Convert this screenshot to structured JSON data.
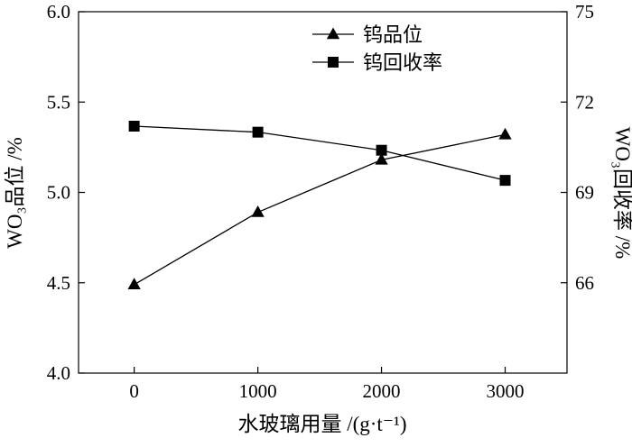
{
  "chart_data": {
    "type": "line",
    "title": "",
    "xlabel": "水玻璃用量 /(g·t⁻¹)",
    "ylabel_left": "WO₃品位 /%",
    "ylabel_right": "WO₃回收率 /%",
    "x": [
      0,
      1000,
      2000,
      3000
    ],
    "xlim": [
      -450,
      3500
    ],
    "xticks": [
      0,
      1000,
      2000,
      3000
    ],
    "ylim_left": [
      4.0,
      6.0
    ],
    "yticks_left": [
      4.0,
      4.5,
      5.0,
      5.5,
      6.0
    ],
    "ylim_right": [
      63,
      75
    ],
    "yticks_right": [
      66,
      69,
      72,
      75
    ],
    "grid": false,
    "legend_position": "top-right",
    "series": [
      {
        "name": "钨品位",
        "axis": "left",
        "marker": "triangle",
        "color": "#000000",
        "values": [
          4.49,
          4.89,
          5.18,
          5.32
        ]
      },
      {
        "name": "钨回收率",
        "axis": "right",
        "marker": "square",
        "color": "#000000",
        "values": [
          71.2,
          71.0,
          70.4,
          69.4
        ]
      }
    ]
  }
}
